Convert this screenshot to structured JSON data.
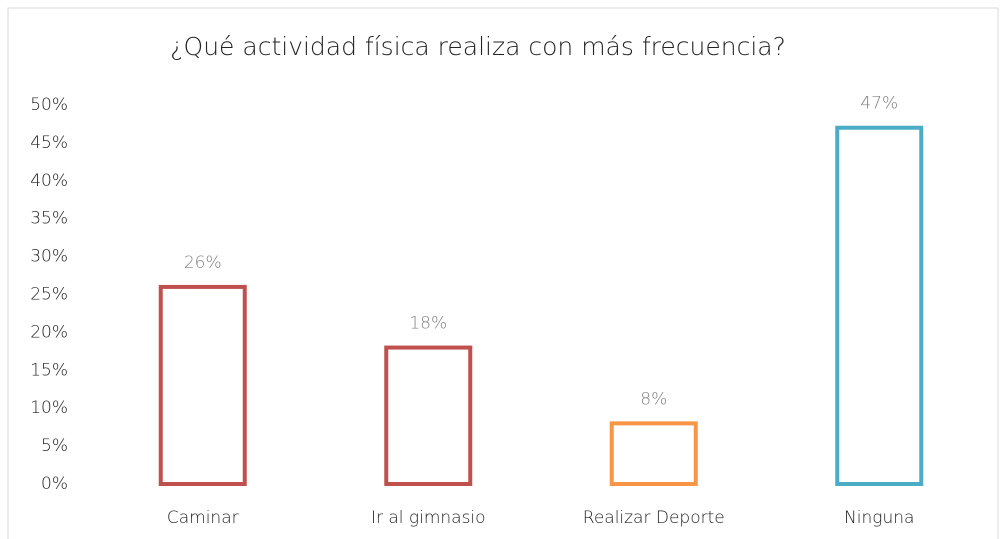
{
  "chart_data": {
    "type": "bar",
    "title": "¿Qué actividad física realiza con más frecuencia?",
    "categories": [
      "Caminar",
      "Ir al gimnasio",
      "Realizar Deporte",
      "Ninguna"
    ],
    "values": [
      26,
      18,
      8,
      47
    ],
    "value_labels": [
      "26%",
      "18%",
      "8%",
      "47%"
    ],
    "colors": [
      "#c0504d",
      "#c0504d",
      "#f79646",
      "#4bacc6"
    ],
    "ylim": [
      0,
      50
    ],
    "yticks": [
      {
        "value": 0,
        "label": "0%"
      },
      {
        "value": 5,
        "label": "5%"
      },
      {
        "value": 10,
        "label": "10%"
      },
      {
        "value": 15,
        "label": "15%"
      },
      {
        "value": 20,
        "label": "20%"
      },
      {
        "value": 25,
        "label": "25%"
      },
      {
        "value": 30,
        "label": "30%"
      },
      {
        "value": 35,
        "label": "35%"
      },
      {
        "value": 40,
        "label": "40%"
      },
      {
        "value": 45,
        "label": "45%"
      },
      {
        "value": 50,
        "label": "50%"
      }
    ],
    "grid": false
  }
}
